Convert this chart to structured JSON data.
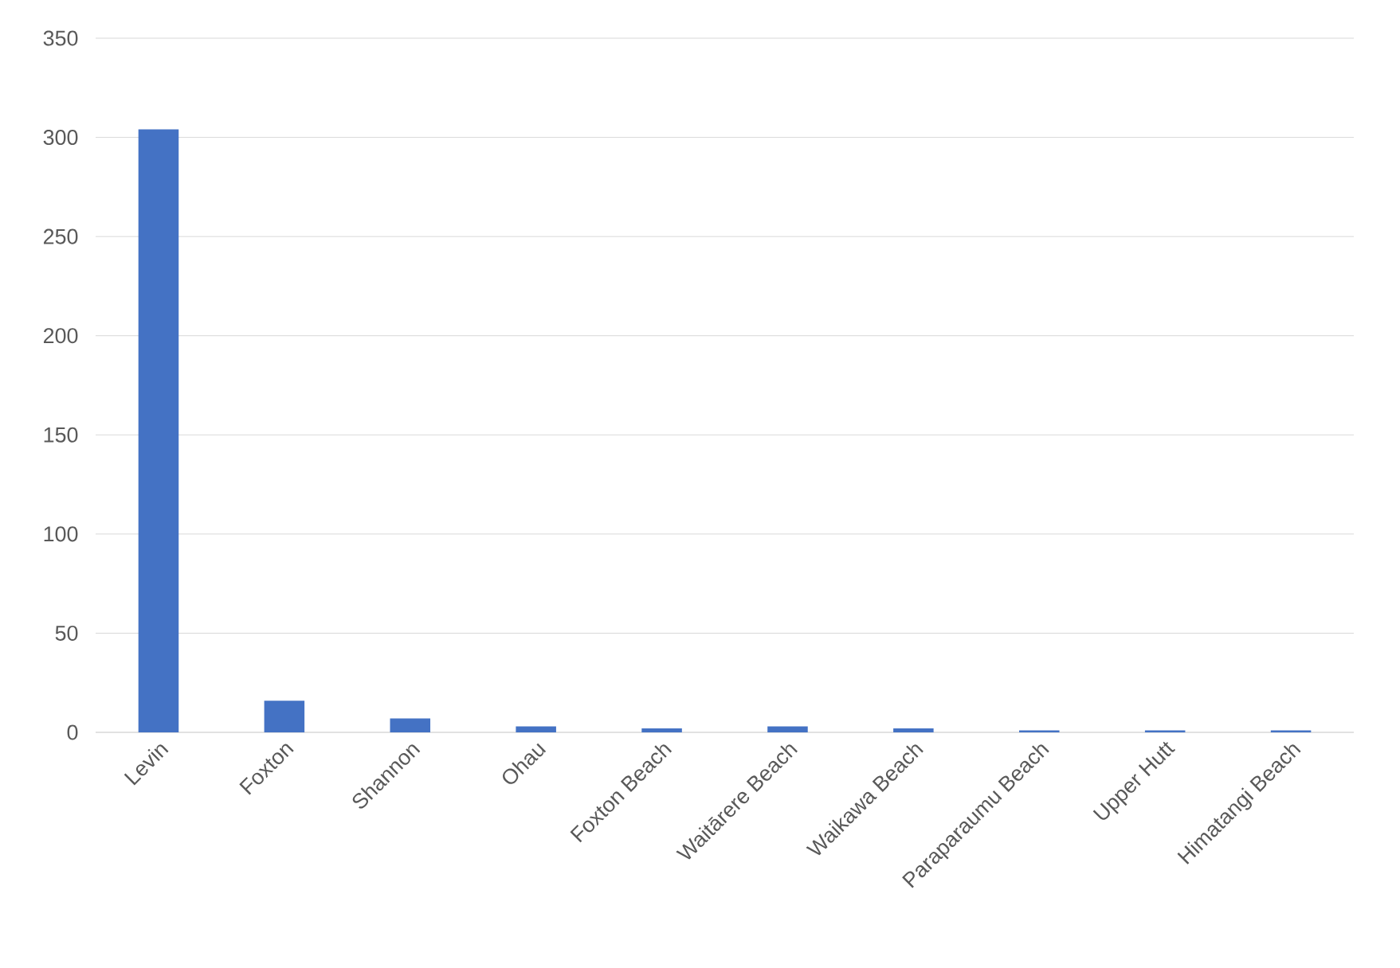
{
  "chart_data": {
    "type": "bar",
    "categories": [
      "Levin",
      "Foxton",
      "Shannon",
      "Ohau",
      "Foxton Beach",
      "Waitārere Beach",
      "Waikawa Beach",
      "Paraparaumu Beach",
      "Upper Hutt",
      "Himatangi Beach"
    ],
    "values": [
      304,
      16,
      7,
      3,
      2,
      3,
      2,
      1,
      1,
      1
    ],
    "color": "#4472c4",
    "ylim": [
      0,
      350
    ],
    "yticks": [
      0,
      50,
      100,
      150,
      200,
      250,
      300,
      350
    ],
    "grid": "y"
  }
}
